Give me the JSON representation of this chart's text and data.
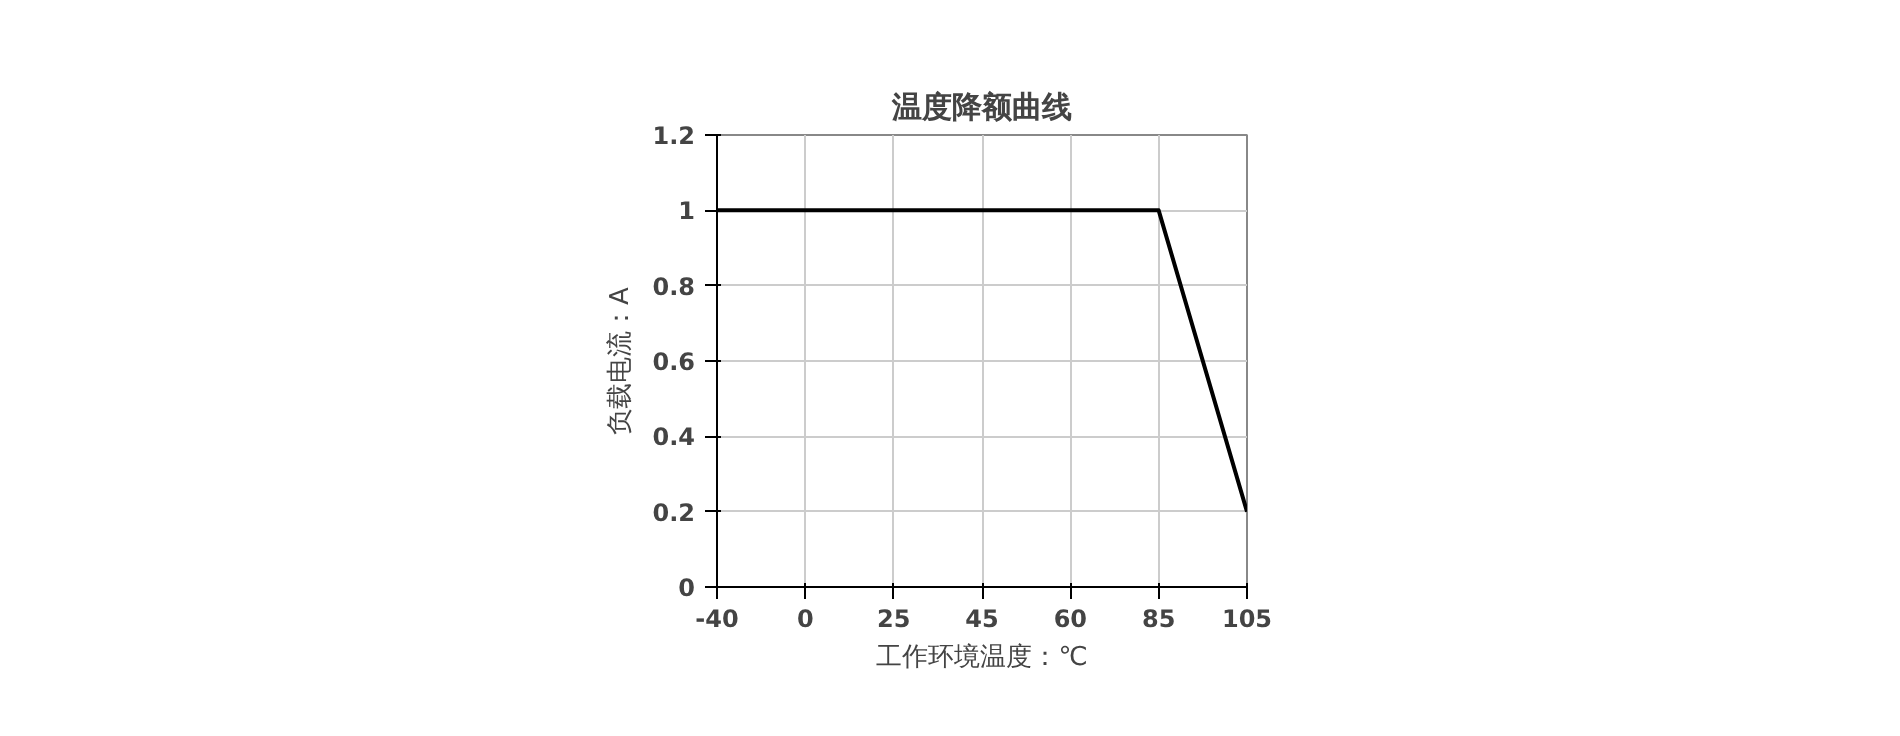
{
  "chart_data": {
    "type": "line",
    "title": "温度降额曲线",
    "xlabel": "工作环境温度：℃",
    "ylabel": "负载电流：A",
    "categories": [
      "-40",
      "0",
      "25",
      "45",
      "60",
      "85",
      "105"
    ],
    "values": [
      1,
      1,
      1,
      1,
      1,
      1,
      0.2
    ],
    "color": "#000000",
    "ylim": [
      0,
      1.2
    ],
    "yticks": [
      0,
      0.2,
      0.4,
      0.6,
      0.8,
      1,
      1.2
    ],
    "grid": true
  }
}
